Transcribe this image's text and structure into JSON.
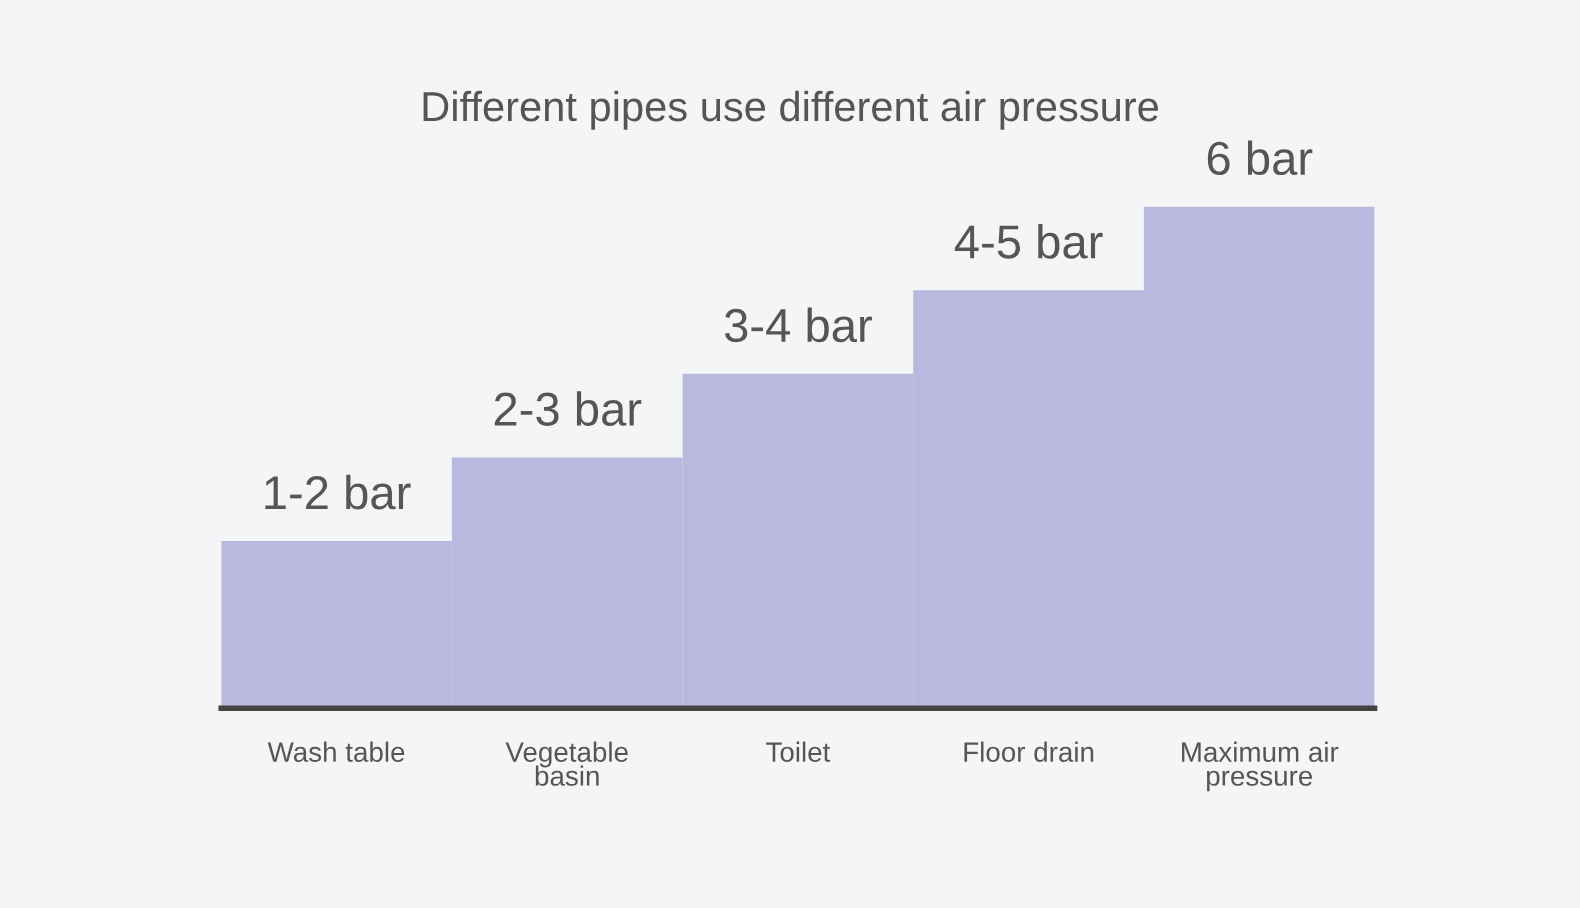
{
  "chart_data": {
    "type": "bar",
    "title": "Different pipes use different air pressure",
    "categories": [
      "Wash table",
      "Vegetable\nbasin",
      "Toilet",
      "Floor drain",
      "Maximum air\npressure"
    ],
    "values": [
      2,
      3,
      4,
      5,
      6
    ],
    "value_labels": [
      "1-2 bar",
      "2-3 bar",
      "3-4 bar",
      "4-5 bar",
      "6 bar"
    ],
    "color": "#b9b9e0",
    "grid": false,
    "legend": false
  }
}
